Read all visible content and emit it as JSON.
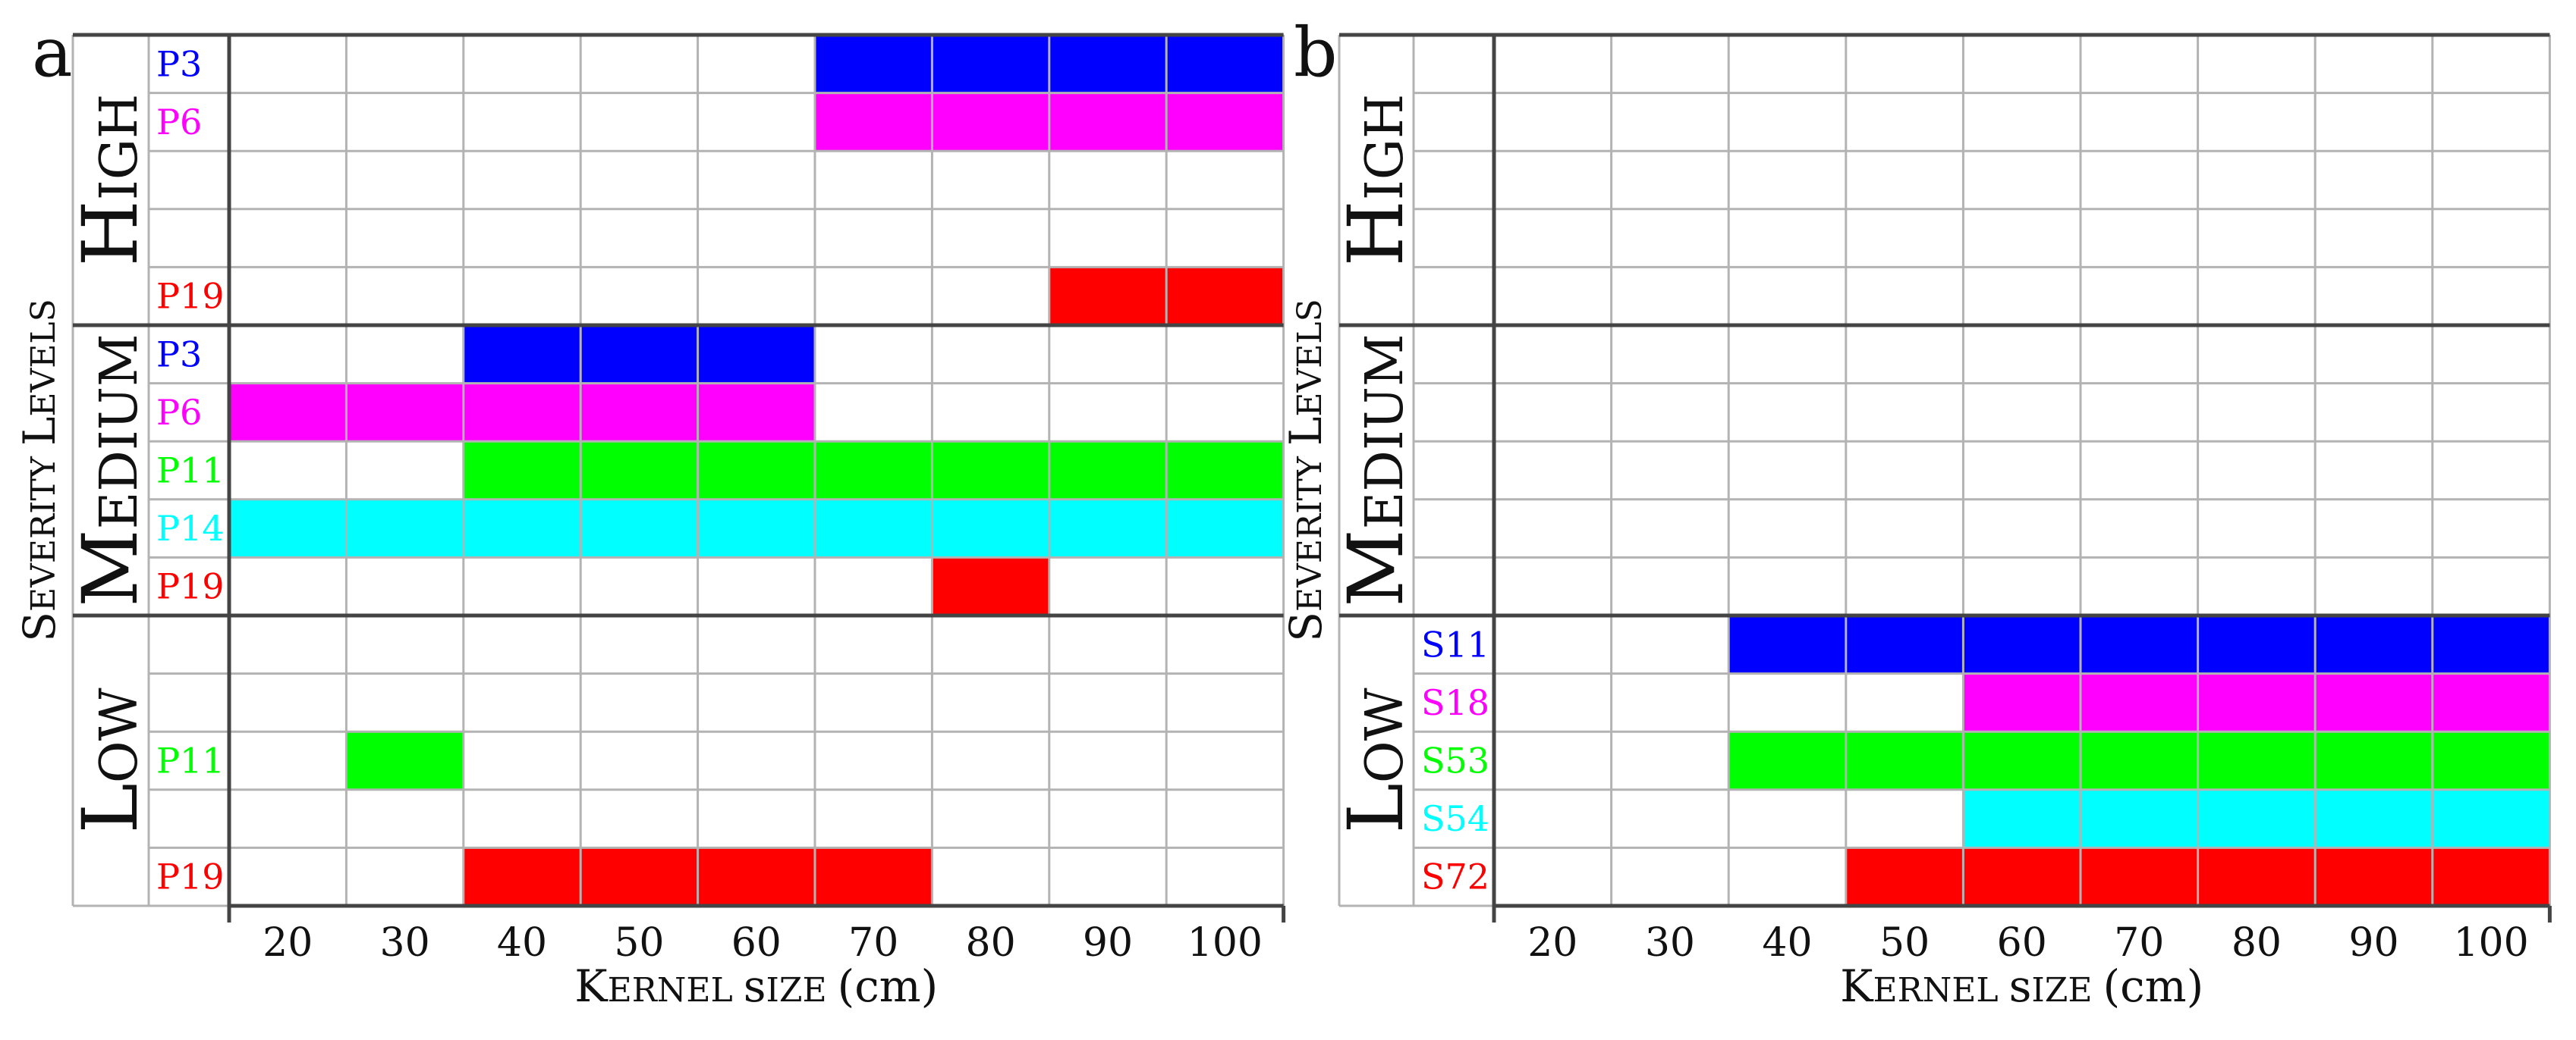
{
  "chart_data": [
    {
      "type": "table",
      "panel_label": "a",
      "ylabel": "Severity Levels",
      "xlabel": "Kernel size (cm)",
      "categories": [
        "20",
        "30",
        "40",
        "50",
        "60",
        "70",
        "80",
        "90",
        "100"
      ],
      "groups": [
        {
          "name": "High",
          "rows": [
            {
              "label": "P3",
              "color": "#0000ff",
              "from": 70,
              "to": 100
            },
            {
              "label": "P6",
              "color": "#ff00ff",
              "from": 70,
              "to": 100
            },
            {
              "label": "",
              "color": "",
              "from": null,
              "to": null
            },
            {
              "label": "",
              "color": "",
              "from": null,
              "to": null
            },
            {
              "label": "P19",
              "color": "#ff0000",
              "from": 90,
              "to": 100
            }
          ]
        },
        {
          "name": "Medium",
          "rows": [
            {
              "label": "P3",
              "color": "#0000ff",
              "from": 40,
              "to": 60
            },
            {
              "label": "P6",
              "color": "#ff00ff",
              "from": 20,
              "to": 60
            },
            {
              "label": "P11",
              "color": "#00ff00",
              "from": 40,
              "to": 100
            },
            {
              "label": "P14",
              "color": "#00ffff",
              "from": 20,
              "to": 100
            },
            {
              "label": "P19",
              "color": "#ff0000",
              "from": 80,
              "to": 80
            }
          ]
        },
        {
          "name": "Low",
          "rows": [
            {
              "label": "",
              "color": "",
              "from": null,
              "to": null
            },
            {
              "label": "",
              "color": "",
              "from": null,
              "to": null
            },
            {
              "label": "P11",
              "color": "#00ff00",
              "from": 30,
              "to": 30
            },
            {
              "label": "",
              "color": "",
              "from": null,
              "to": null
            },
            {
              "label": "P19",
              "color": "#ff0000",
              "from": 40,
              "to": 70
            }
          ]
        }
      ]
    },
    {
      "type": "table",
      "panel_label": "b",
      "ylabel": "Severity Levels",
      "xlabel": "Kernel size (cm)",
      "categories": [
        "20",
        "30",
        "40",
        "50",
        "60",
        "70",
        "80",
        "90",
        "100"
      ],
      "groups": [
        {
          "name": "High",
          "rows": [
            {
              "label": "",
              "color": "",
              "from": null,
              "to": null
            },
            {
              "label": "",
              "color": "",
              "from": null,
              "to": null
            },
            {
              "label": "",
              "color": "",
              "from": null,
              "to": null
            },
            {
              "label": "",
              "color": "",
              "from": null,
              "to": null
            },
            {
              "label": "",
              "color": "",
              "from": null,
              "to": null
            }
          ]
        },
        {
          "name": "Medium",
          "rows": [
            {
              "label": "",
              "color": "",
              "from": null,
              "to": null
            },
            {
              "label": "",
              "color": "",
              "from": null,
              "to": null
            },
            {
              "label": "",
              "color": "",
              "from": null,
              "to": null
            },
            {
              "label": "",
              "color": "",
              "from": null,
              "to": null
            },
            {
              "label": "",
              "color": "",
              "from": null,
              "to": null
            }
          ]
        },
        {
          "name": "Low",
          "rows": [
            {
              "label": "S11",
              "color": "#0000ff",
              "from": 40,
              "to": 100
            },
            {
              "label": "S18",
              "color": "#ff00ff",
              "from": 60,
              "to": 100
            },
            {
              "label": "S53",
              "color": "#00ff00",
              "from": 40,
              "to": 100
            },
            {
              "label": "S54",
              "color": "#00ffff",
              "from": 60,
              "to": 100
            },
            {
              "label": "S72",
              "color": "#ff0000",
              "from": 50,
              "to": 100
            }
          ]
        }
      ]
    }
  ]
}
